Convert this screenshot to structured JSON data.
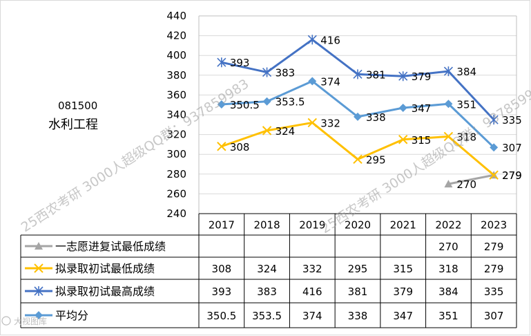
{
  "side_label": {
    "code": "081500",
    "major": "水利工程"
  },
  "watermark": "25西农考研 3000人超级QQ群：937859983",
  "corner_logo": "大视图库",
  "chart_data": {
    "type": "line",
    "categories": [
      "2017",
      "2018",
      "2019",
      "2020",
      "2021",
      "2022",
      "2023"
    ],
    "ylim": [
      240,
      440
    ],
    "yticks": [
      240,
      260,
      280,
      300,
      320,
      340,
      360,
      380,
      400,
      420,
      440
    ],
    "grid": true,
    "legend": "table-bottom",
    "series": [
      {
        "name": "一志愿进复试最低成绩",
        "color": "#a5a5a5",
        "marker": "triangle",
        "values": [
          null,
          null,
          null,
          null,
          null,
          270,
          279
        ],
        "labels": [
          "",
          "",
          "",
          "",
          "",
          "270",
          "279"
        ]
      },
      {
        "name": "拟录取初试最低成绩",
        "color": "#ffc000",
        "marker": "x",
        "values": [
          308,
          324,
          332,
          295,
          315,
          318,
          279
        ],
        "labels": [
          "308",
          "324",
          "332",
          "295",
          "315",
          "318",
          "279"
        ]
      },
      {
        "name": "拟录取初试最高成绩",
        "color": "#4472c4",
        "marker": "star",
        "values": [
          393,
          383,
          416,
          381,
          379,
          384,
          335
        ],
        "labels": [
          "393",
          "383",
          "416",
          "381",
          "379",
          "384",
          "335"
        ]
      },
      {
        "name": "平均分",
        "color": "#5b9bd5",
        "marker": "diamond",
        "values": [
          350.5,
          353.5,
          374,
          338,
          347,
          351,
          307
        ],
        "labels": [
          "350.5",
          "353.5",
          "374",
          "338",
          "347",
          "351",
          "307"
        ]
      }
    ]
  }
}
